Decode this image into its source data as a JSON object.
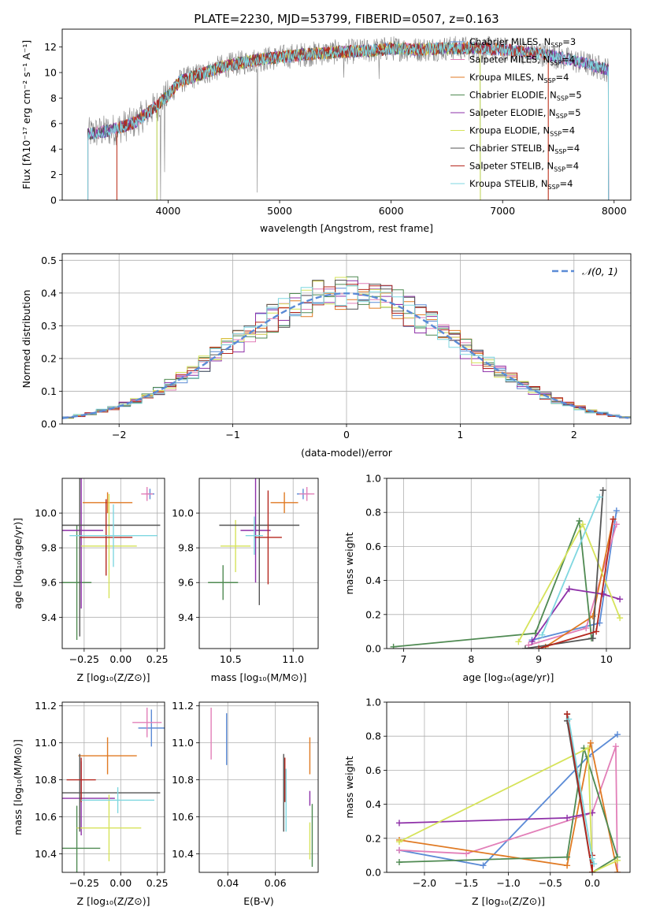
{
  "page": {
    "title": "PLATE=2230, MJD=53799, FIBERID=0507, z=0.163"
  },
  "colors": {
    "Chabrier MILES": "#5b8bd6",
    "Salpeter MILES": "#e27fb8",
    "Kroupa MILES": "#e07a23",
    "Chabrier ELODIE": "#4f8a52",
    "Salpeter ELODIE": "#8e30a8",
    "Kroupa ELODIE": "#d6e35a",
    "Chabrier STELIB": "#555555",
    "Salpeter STELIB": "#b5271e",
    "Kroupa STELIB": "#7fd7e0",
    "data": "#808080",
    "normal": "#5b8bd6",
    "grid": "#b0b0b0"
  },
  "chart_data": [
    {
      "id": "spectrum",
      "type": "line",
      "title": "PLATE=2230, MJD=53799, FIBERID=0507, z=0.163",
      "xlabel": "wavelength [Angstrom, rest frame]",
      "ylabel": "Flux [fλ10⁻¹⁷ erg cm⁻² s⁻¹ A⁻¹]",
      "xlim": [
        3050,
        8150
      ],
      "ylim": [
        0,
        13.4
      ],
      "xticks": [
        4000,
        5000,
        6000,
        7000,
        8000
      ],
      "yticks": [
        0,
        2,
        4,
        6,
        8,
        10,
        12
      ],
      "grid": false,
      "legend_position": "lower-right",
      "continuum": {
        "x": [
          3280,
          3500,
          3700,
          3900,
          4000,
          4100,
          4300,
          4500,
          4800,
          5000,
          5200,
          5500,
          5800,
          6000,
          6200,
          6500,
          6800,
          7000,
          7200,
          7400,
          7600,
          7700,
          7950
        ],
        "y": [
          5.2,
          5.5,
          6.1,
          7.4,
          8.2,
          9.3,
          9.9,
          10.5,
          11.0,
          11.2,
          11.4,
          11.6,
          11.7,
          11.9,
          11.8,
          11.9,
          11.9,
          11.8,
          11.6,
          11.4,
          11.0,
          10.8,
          10.2
        ]
      },
      "data_range": [
        3280,
        7950
      ],
      "deep_lines": [
        {
          "x": 3933,
          "y": 0
        },
        {
          "x": 3968,
          "y": 2.2
        },
        {
          "x": 4800,
          "y": 0.6
        },
        {
          "x": 5577,
          "y": 9.6
        },
        {
          "x": 5892,
          "y": 9.5
        }
      ],
      "model_cutoffs": [
        {
          "model": "Kroupa MILES",
          "low": 3540,
          "high": 7410
        },
        {
          "model": "Salpeter STELIB",
          "low": 3540,
          "high": 7410
        },
        {
          "model": "Kroupa ELODIE",
          "low": 3900,
          "high": 6800
        },
        {
          "model": "Chabrier ELODIE",
          "low": 3900,
          "high": 6800
        }
      ],
      "legend": [
        {
          "model": "Chabrier MILES",
          "label": "Chabrier MILES, N",
          "sub": "SSP",
          "tail": "=3"
        },
        {
          "model": "Salpeter MILES",
          "label": "Salpeter MILES, N",
          "sub": "SSP",
          "tail": "=4"
        },
        {
          "model": "Kroupa MILES",
          "label": "Kroupa MILES, N",
          "sub": "SSP",
          "tail": "=4"
        },
        {
          "model": "Chabrier ELODIE",
          "label": "Chabrier ELODIE, N",
          "sub": "SSP",
          "tail": "=5"
        },
        {
          "model": "Salpeter ELODIE",
          "label": "Salpeter ELODIE, N",
          "sub": "SSP",
          "tail": "=5"
        },
        {
          "model": "Kroupa ELODIE",
          "label": "Kroupa ELODIE, N",
          "sub": "SSP",
          "tail": "=4"
        },
        {
          "model": "Chabrier STELIB",
          "label": "Chabrier STELIB, N",
          "sub": "SSP",
          "tail": "=4"
        },
        {
          "model": "Salpeter STELIB",
          "label": "Salpeter STELIB, N",
          "sub": "SSP",
          "tail": "=4"
        },
        {
          "model": "Kroupa STELIB",
          "label": "Kroupa STELIB, N",
          "sub": "SSP",
          "tail": "=4"
        }
      ]
    },
    {
      "id": "residuals",
      "type": "line",
      "xlabel": "(data-model)/error",
      "ylabel": "Normed distribution",
      "xlim": [
        -2.5,
        2.5
      ],
      "ylim": [
        0,
        0.52
      ],
      "xticks": [
        -2,
        -1,
        0,
        1,
        2
      ],
      "xticklabels": [
        "−2",
        "−1",
        "0",
        "1",
        "2"
      ],
      "yticks": [
        0.0,
        0.1,
        0.2,
        0.3,
        0.4,
        0.5
      ],
      "yticklabels": [
        "0.0",
        "0.1",
        "0.2",
        "0.3",
        "0.4",
        "0.5"
      ],
      "grid": true,
      "legend_position": "top-right",
      "legend_label": "𝒩(0, 1)",
      "histogram_bin_width": 0.1,
      "histogram_models": [
        "Chabrier MILES",
        "Salpeter MILES",
        "Kroupa MILES",
        "Chabrier ELODIE",
        "Salpeter ELODIE",
        "Kroupa ELODIE",
        "Chabrier STELIB",
        "Salpeter STELIB",
        "Kroupa STELIB"
      ]
    },
    {
      "id": "age-vs-Z",
      "type": "scatter",
      "xlabel": "Z [log₁₀(Z/Z⊙)]",
      "ylabel": "age  [log₁₀(age/yr)]",
      "xlim": [
        -0.4,
        0.3
      ],
      "ylim": [
        9.22,
        10.2
      ],
      "xticks": [
        -0.25,
        0.0,
        0.25
      ],
      "xticklabels": [
        "−0.25",
        "0.00",
        "0.25"
      ],
      "yticks": [
        9.4,
        9.6,
        9.8,
        10.0
      ],
      "yticklabels": [
        "9.4",
        "9.6",
        "9.8",
        "10.0"
      ],
      "grid": true,
      "errorbars": [
        {
          "model": "Chabrier MILES",
          "x": 0.2,
          "xerr": 0.03,
          "y": 10.11,
          "yerr": 0.03
        },
        {
          "model": "Salpeter MILES",
          "x": 0.18,
          "xerr": 0.04,
          "y": 10.11,
          "yerr": 0.04
        },
        {
          "model": "Kroupa MILES",
          "x": -0.09,
          "xerr": 0.17,
          "y": 10.06,
          "yerr": 0.06
        },
        {
          "model": "Chabrier ELODIE",
          "x": -0.3,
          "xerr": 0.1,
          "y": 9.6,
          "yerr": 0.33
        },
        {
          "model": "Salpeter ELODIE",
          "x": -0.27,
          "xerr": 0.15,
          "y": 9.9,
          "yerr": 0.45
        },
        {
          "model": "Kroupa ELODIE",
          "x": -0.08,
          "xerr": 0.19,
          "y": 9.81,
          "yerr": 0.3
        },
        {
          "model": "Chabrier STELIB",
          "x": -0.28,
          "xerr": 0.55,
          "y": 9.93,
          "yerr": 0.64
        },
        {
          "model": "Salpeter STELIB",
          "x": -0.1,
          "xerr": 0.18,
          "y": 9.86,
          "yerr": 0.22
        },
        {
          "model": "Kroupa STELIB",
          "x": -0.05,
          "xerr": 0.3,
          "y": 9.87,
          "yerr": 0.18
        }
      ]
    },
    {
      "id": "age-vs-mass",
      "type": "scatter",
      "xlabel": "mass [log₁₀(M/M⊙)]",
      "ylabel": "",
      "xlim": [
        10.25,
        11.2
      ],
      "ylim": [
        9.22,
        10.2
      ],
      "xticks": [
        10.5,
        11.0
      ],
      "xticklabels": [
        "10.5",
        "11.0"
      ],
      "yticks": [
        9.4,
        9.6,
        9.8,
        10.0
      ],
      "yticklabels": [
        "9.4",
        "9.6",
        "9.8",
        "10.0"
      ],
      "grid": true,
      "errorbars": [
        {
          "model": "Chabrier MILES",
          "x": 11.08,
          "xerr": 0.05,
          "y": 10.11,
          "yerr": 0.03
        },
        {
          "model": "Salpeter MILES",
          "x": 11.11,
          "xerr": 0.06,
          "y": 10.11,
          "yerr": 0.04
        },
        {
          "model": "Kroupa MILES",
          "x": 10.93,
          "xerr": 0.11,
          "y": 10.06,
          "yerr": 0.06
        },
        {
          "model": "Chabrier ELODIE",
          "x": 10.44,
          "xerr": 0.12,
          "y": 9.6,
          "yerr": 0.1
        },
        {
          "model": "Salpeter ELODIE",
          "x": 10.7,
          "xerr": 0.12,
          "y": 9.9,
          "yerr": 0.3
        },
        {
          "model": "Kroupa ELODIE",
          "x": 10.54,
          "xerr": 0.12,
          "y": 9.81,
          "yerr": 0.15
        },
        {
          "model": "Chabrier STELIB",
          "x": 10.73,
          "xerr": 0.32,
          "y": 9.93,
          "yerr": 0.46
        },
        {
          "model": "Salpeter STELIB",
          "x": 10.8,
          "xerr": 0.11,
          "y": 9.86,
          "yerr": 0.27
        },
        {
          "model": "Kroupa STELIB",
          "x": 10.69,
          "xerr": 0.07,
          "y": 9.87,
          "yerr": 0.11
        }
      ]
    },
    {
      "id": "weight-vs-age",
      "type": "line",
      "xlabel": "age  [log₁₀(age/yr)]",
      "ylabel": "mass weight",
      "xlim": [
        6.75,
        10.35
      ],
      "ylim": [
        0,
        1
      ],
      "xticks": [
        7,
        8,
        9,
        10
      ],
      "xticklabels": [
        "7",
        "8",
        "9",
        "10"
      ],
      "yticks": [
        0.0,
        0.2,
        0.4,
        0.6,
        0.8,
        1.0
      ],
      "yticklabels": [
        "0.0",
        "0.2",
        "0.4",
        "0.6",
        "0.8",
        "1.0"
      ],
      "grid": true,
      "series": [
        {
          "model": "Chabrier MILES",
          "x": [
            8.9,
            9.9,
            10.15
          ],
          "y": [
            0.05,
            0.15,
            0.81
          ]
        },
        {
          "model": "Salpeter MILES",
          "x": [
            8.85,
            9.7,
            10.15
          ],
          "y": [
            0.02,
            0.12,
            0.73
          ]
        },
        {
          "model": "Kroupa MILES",
          "x": [
            9.1,
            9.8,
            10.1
          ],
          "y": [
            0.01,
            0.19,
            0.76
          ]
        },
        {
          "model": "Chabrier ELODIE",
          "x": [
            6.85,
            8.95,
            9.6,
            9.78
          ],
          "y": [
            0.01,
            0.09,
            0.75,
            0.06
          ]
        },
        {
          "model": "Salpeter ELODIE",
          "x": [
            8.9,
            9.45,
            9.95,
            10.2
          ],
          "y": [
            0.04,
            0.35,
            0.32,
            0.29
          ]
        },
        {
          "model": "Kroupa ELODIE",
          "x": [
            8.7,
            9.65,
            10.2
          ],
          "y": [
            0.04,
            0.73,
            0.18
          ]
        },
        {
          "model": "Chabrier STELIB",
          "x": [
            8.8,
            9.8,
            9.95
          ],
          "y": [
            0.0,
            0.06,
            0.93
          ]
        },
        {
          "model": "Salpeter STELIB",
          "x": [
            9.0,
            9.85,
            10.1
          ],
          "y": [
            0.0,
            0.1,
            0.76
          ]
        },
        {
          "model": "Kroupa STELIB",
          "x": [
            9.05,
            9.9
          ],
          "y": [
            0.08,
            0.89
          ]
        }
      ]
    },
    {
      "id": "mass-vs-Z",
      "type": "scatter",
      "xlabel": "Z [log₁₀(Z/Z⊙)]",
      "ylabel": "mass [log₁₀(M/M⊙)]",
      "xlim": [
        -0.4,
        0.3
      ],
      "ylim": [
        10.3,
        11.22
      ],
      "xticks": [
        -0.25,
        0.0,
        0.25
      ],
      "xticklabels": [
        "−0.25",
        "0.00",
        "0.25"
      ],
      "yticks": [
        10.4,
        10.6,
        10.8,
        11.0,
        11.2
      ],
      "yticklabels": [
        "10.4",
        "10.6",
        "10.8",
        "11.0",
        "11.2"
      ],
      "grid": true,
      "errorbars": [
        {
          "model": "Chabrier MILES",
          "x": 0.21,
          "xerr": 0.09,
          "y": 11.08,
          "yerr": 0.1
        },
        {
          "model": "Salpeter MILES",
          "x": 0.18,
          "xerr": 0.1,
          "y": 11.11,
          "yerr": 0.08
        },
        {
          "model": "Kroupa MILES",
          "x": -0.09,
          "xerr": 0.2,
          "y": 10.93,
          "yerr": 0.1
        },
        {
          "model": "Chabrier ELODIE",
          "x": -0.3,
          "xerr": 0.16,
          "y": 10.43,
          "yerr": 0.23
        },
        {
          "model": "Salpeter ELODIE",
          "x": -0.27,
          "xerr": 0.23,
          "y": 10.7,
          "yerr": 0.2
        },
        {
          "model": "Kroupa ELODIE",
          "x": -0.08,
          "xerr": 0.22,
          "y": 10.54,
          "yerr": 0.18
        },
        {
          "model": "Chabrier STELIB",
          "x": -0.28,
          "xerr": 0.55,
          "y": 10.73,
          "yerr": 0.21
        },
        {
          "model": "Salpeter STELIB",
          "x": -0.27,
          "xerr": 0.1,
          "y": 10.8,
          "yerr": 0.12
        },
        {
          "model": "Kroupa STELIB",
          "x": -0.02,
          "xerr": 0.25,
          "y": 10.69,
          "yerr": 0.07
        }
      ]
    },
    {
      "id": "mass-vs-EBV",
      "type": "scatter",
      "xlabel": "E(B-V)",
      "ylabel": "",
      "xlim": [
        0.028,
        0.078
      ],
      "ylim": [
        10.3,
        11.22
      ],
      "xticks": [
        0.04,
        0.06
      ],
      "xticklabels": [
        "0.04",
        "0.06"
      ],
      "yticks": [
        10.4,
        10.6,
        10.8,
        11.0,
        11.2
      ],
      "yticklabels": [
        "10.4",
        "10.6",
        "10.8",
        "11.0",
        "11.2"
      ],
      "grid": true,
      "errorbars": [
        {
          "model": "Chabrier MILES",
          "x": 0.0395,
          "xerr": 0,
          "y": 11.02,
          "yerr": 0.14
        },
        {
          "model": "Salpeter MILES",
          "x": 0.033,
          "xerr": 0,
          "y": 11.05,
          "yerr": 0.14
        },
        {
          "model": "Kroupa MILES",
          "x": 0.0745,
          "xerr": 0,
          "y": 10.93,
          "yerr": 0.1
        },
        {
          "model": "Chabrier ELODIE",
          "x": 0.0755,
          "xerr": 0,
          "y": 10.5,
          "yerr": 0.17
        },
        {
          "model": "Salpeter ELODIE",
          "x": 0.0745,
          "xerr": 0,
          "y": 10.7,
          "yerr": 0.04
        },
        {
          "model": "Kroupa ELODIE",
          "x": 0.0745,
          "xerr": 0,
          "y": 10.47,
          "yerr": 0.1
        },
        {
          "model": "Chabrier STELIB",
          "x": 0.0635,
          "xerr": 0,
          "y": 10.73,
          "yerr": 0.21
        },
        {
          "model": "Salpeter STELIB",
          "x": 0.064,
          "xerr": 0,
          "y": 10.8,
          "yerr": 0.12
        },
        {
          "model": "Kroupa STELIB",
          "x": 0.0645,
          "xerr": 0,
          "y": 10.69,
          "yerr": 0.17
        }
      ]
    },
    {
      "id": "weight-vs-Z",
      "type": "line",
      "xlabel": "Z [log₁₀(Z/Z⊙)]",
      "ylabel": "mass weight",
      "xlim": [
        -2.45,
        0.45
      ],
      "ylim": [
        0,
        1
      ],
      "xticks": [
        -2.0,
        -1.5,
        -1.0,
        -0.5,
        0.0
      ],
      "xticklabels": [
        "−2.0",
        "−1.5",
        "−1.0",
        "−0.5",
        "0.0"
      ],
      "yticks": [
        0.0,
        0.2,
        0.4,
        0.6,
        0.8,
        1.0
      ],
      "yticklabels": [
        "0.0",
        "0.2",
        "0.4",
        "0.6",
        "0.8",
        "1.0"
      ],
      "grid": true,
      "series": [
        {
          "model": "Chabrier MILES",
          "x": [
            -2.3,
            -1.3,
            -0.05,
            0.3
          ],
          "y": [
            0.13,
            0.04,
            0.68,
            0.81
          ]
        },
        {
          "model": "Salpeter MILES",
          "x": [
            -2.3,
            -1.5,
            0.0,
            0.28,
            0.3
          ],
          "y": [
            0.13,
            0.11,
            0.35,
            0.74,
            0.0
          ]
        },
        {
          "model": "Kroupa MILES",
          "x": [
            -2.3,
            -0.3,
            -0.02,
            0.3
          ],
          "y": [
            0.19,
            0.04,
            0.76,
            0.0
          ]
        },
        {
          "model": "Chabrier ELODIE",
          "x": [
            -2.3,
            -0.3,
            -0.1,
            0.3,
            0.0
          ],
          "y": [
            0.06,
            0.09,
            0.73,
            0.09,
            0.0
          ]
        },
        {
          "model": "Salpeter ELODIE",
          "x": [
            -2.3,
            -0.3,
            0.0
          ],
          "y": [
            0.29,
            0.32,
            0.35
          ]
        },
        {
          "model": "Kroupa ELODIE",
          "x": [
            -2.3,
            -0.05,
            0.0,
            0.3
          ],
          "y": [
            0.18,
            0.73,
            0.0,
            0.07
          ]
        },
        {
          "model": "Chabrier STELIB",
          "x": [
            -0.3,
            -0.3,
            0.0
          ],
          "y": [
            0.93,
            0.89,
            0.0
          ]
        },
        {
          "model": "Salpeter STELIB",
          "x": [
            -0.3,
            0.0,
            0.0
          ],
          "y": [
            0.93,
            0.0,
            0.1
          ]
        },
        {
          "model": "Kroupa STELIB",
          "x": [
            -0.28,
            0.0,
            0.02
          ],
          "y": [
            0.9,
            0.08,
            0.05
          ]
        }
      ]
    }
  ]
}
